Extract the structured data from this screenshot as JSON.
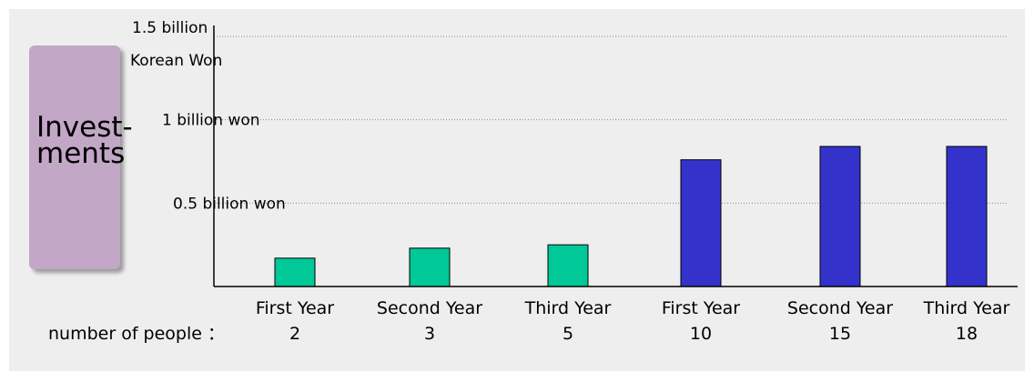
{
  "side_label": {
    "text": "Invest-\nments"
  },
  "chart_data": {
    "type": "bar",
    "categories": [
      "First Year",
      "Second Year",
      "Third Year",
      "First Year",
      "Second Year",
      "Third Year"
    ],
    "people_row_label": "number of people ：",
    "people": [
      "2",
      "3",
      "5",
      "10",
      "15",
      "18"
    ],
    "values": [
      0.17,
      0.23,
      0.25,
      0.76,
      0.84,
      0.84
    ],
    "bar_colors": [
      "#00c896",
      "#00c896",
      "#00c896",
      "#3333cc",
      "#3333cc",
      "#3333cc"
    ],
    "y_unit": "billion won",
    "ylim": [
      0,
      1.5
    ],
    "ticks": [
      {
        "value": 1.5,
        "label": "1.5 billion",
        "label2": "Korean Won"
      },
      {
        "value": 1.0,
        "label": "1 billion won"
      },
      {
        "value": 0.5,
        "label": "0.5 billion won"
      }
    ],
    "grid": "dotted"
  }
}
